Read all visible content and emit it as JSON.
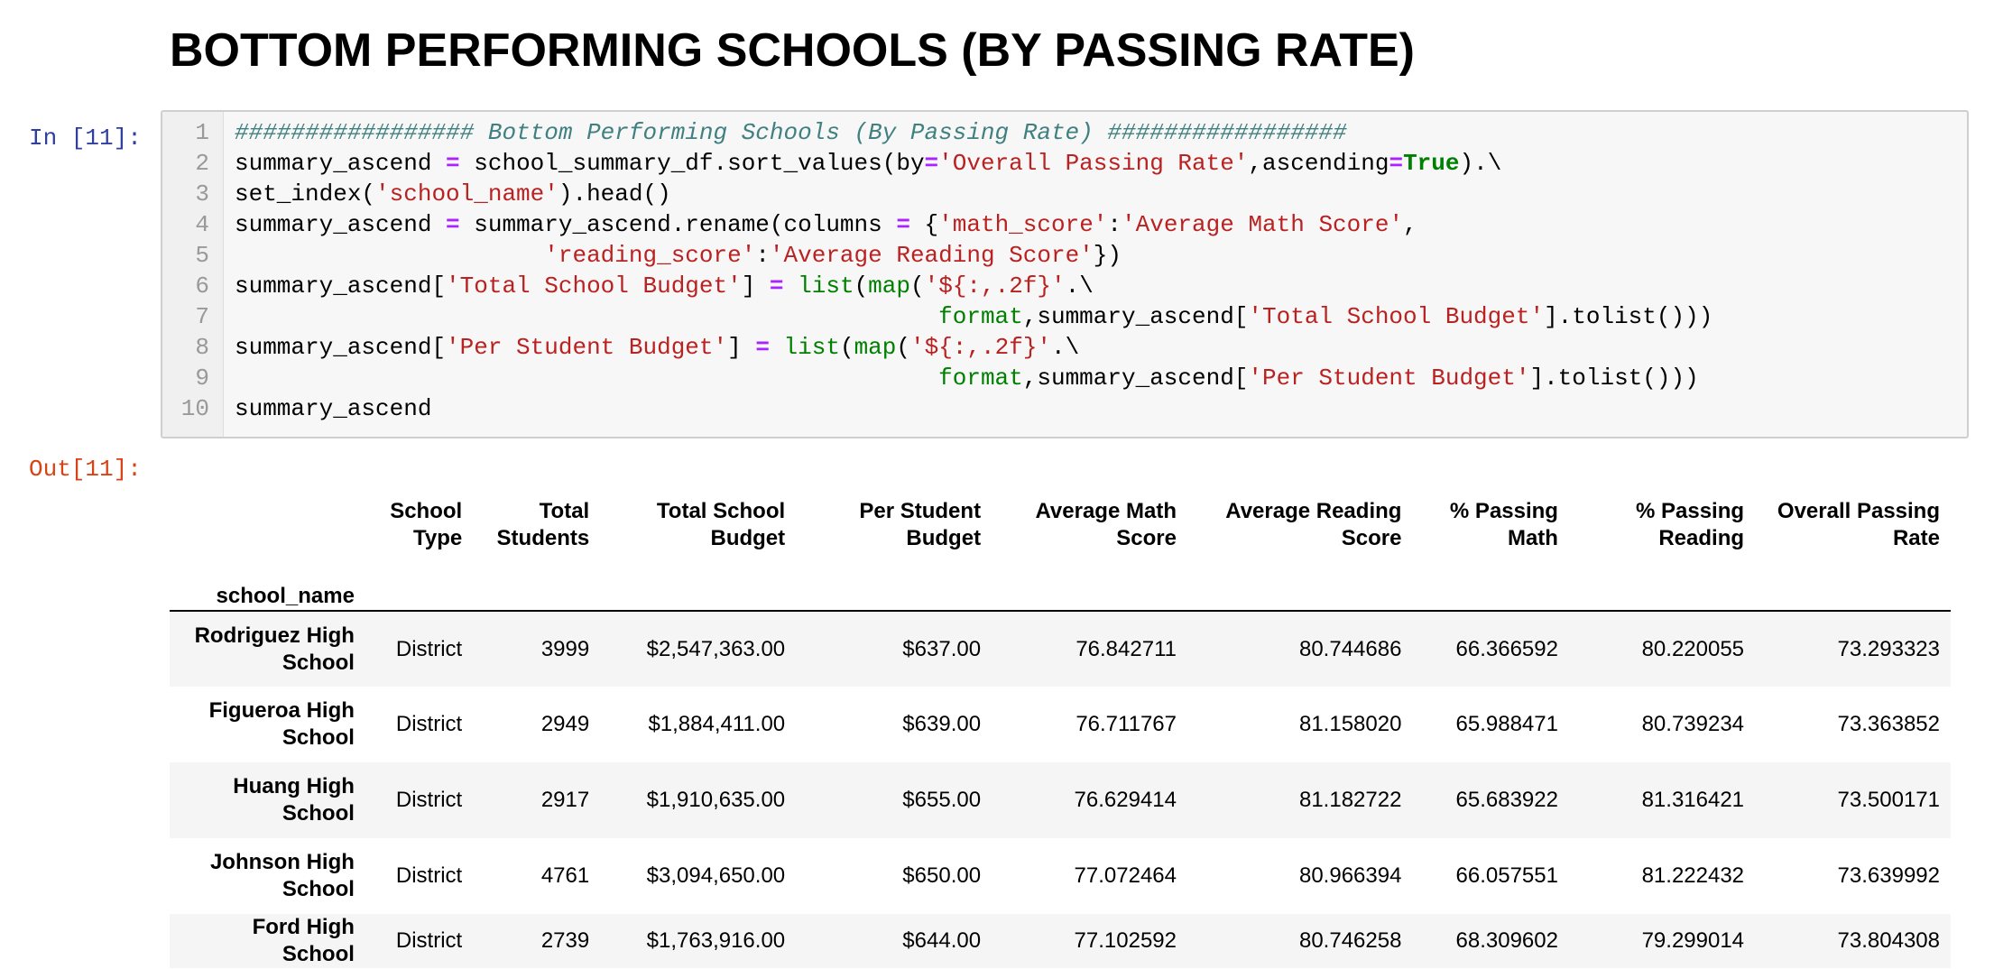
{
  "heading": "BOTTOM PERFORMING SCHOOLS (BY PASSING RATE)",
  "input_prompt": "In [11]:",
  "output_prompt": "Out[11]:",
  "code_lines": [
    {
      "n": "1",
      "tokens": [
        {
          "t": "cm",
          "v": "################# Bottom Performing Schools (By Passing Rate) #################"
        }
      ]
    },
    {
      "n": "2",
      "tokens": [
        {
          "t": "",
          "v": "summary_ascend "
        },
        {
          "t": "op",
          "v": "="
        },
        {
          "t": "",
          "v": " school_summary_df.sort_values(by"
        },
        {
          "t": "op",
          "v": "="
        },
        {
          "t": "st",
          "v": "'Overall Passing Rate'"
        },
        {
          "t": "",
          "v": ",ascending"
        },
        {
          "t": "op",
          "v": "="
        },
        {
          "t": "kw",
          "v": "True"
        },
        {
          "t": "",
          "v": ").\\"
        }
      ]
    },
    {
      "n": "3",
      "tokens": [
        {
          "t": "",
          "v": "set_index("
        },
        {
          "t": "st",
          "v": "'school_name'"
        },
        {
          "t": "",
          "v": ").head()"
        }
      ]
    },
    {
      "n": "4",
      "tokens": [
        {
          "t": "",
          "v": "summary_ascend "
        },
        {
          "t": "op",
          "v": "="
        },
        {
          "t": "",
          "v": " summary_ascend.rename(columns "
        },
        {
          "t": "op",
          "v": "="
        },
        {
          "t": "",
          "v": " {"
        },
        {
          "t": "st",
          "v": "'math_score'"
        },
        {
          "t": "",
          "v": ":"
        },
        {
          "t": "st",
          "v": "'Average Math Score'"
        },
        {
          "t": "",
          "v": ","
        }
      ]
    },
    {
      "n": "5",
      "tokens": [
        {
          "t": "",
          "v": "                      "
        },
        {
          "t": "st",
          "v": "'reading_score'"
        },
        {
          "t": "",
          "v": ":"
        },
        {
          "t": "st",
          "v": "'Average Reading Score'"
        },
        {
          "t": "",
          "v": "})"
        }
      ]
    },
    {
      "n": "6",
      "tokens": [
        {
          "t": "",
          "v": "summary_ascend["
        },
        {
          "t": "st",
          "v": "'Total School Budget'"
        },
        {
          "t": "",
          "v": "] "
        },
        {
          "t": "op",
          "v": "="
        },
        {
          "t": "",
          "v": " "
        },
        {
          "t": "bi",
          "v": "list"
        },
        {
          "t": "",
          "v": "("
        },
        {
          "t": "bi",
          "v": "map"
        },
        {
          "t": "",
          "v": "("
        },
        {
          "t": "st",
          "v": "'${:,.2f}'"
        },
        {
          "t": "",
          "v": ".\\"
        }
      ]
    },
    {
      "n": "7",
      "tokens": [
        {
          "t": "",
          "v": "                                                  "
        },
        {
          "t": "bi",
          "v": "format"
        },
        {
          "t": "",
          "v": ",summary_ascend["
        },
        {
          "t": "st",
          "v": "'Total School Budget'"
        },
        {
          "t": "",
          "v": "].tolist()))"
        }
      ]
    },
    {
      "n": "8",
      "tokens": [
        {
          "t": "",
          "v": "summary_ascend["
        },
        {
          "t": "st",
          "v": "'Per Student Budget'"
        },
        {
          "t": "",
          "v": "] "
        },
        {
          "t": "op",
          "v": "="
        },
        {
          "t": "",
          "v": " "
        },
        {
          "t": "bi",
          "v": "list"
        },
        {
          "t": "",
          "v": "("
        },
        {
          "t": "bi",
          "v": "map"
        },
        {
          "t": "",
          "v": "("
        },
        {
          "t": "st",
          "v": "'${:,.2f}'"
        },
        {
          "t": "",
          "v": ".\\"
        }
      ]
    },
    {
      "n": "9",
      "tokens": [
        {
          "t": "",
          "v": "                                                  "
        },
        {
          "t": "bi",
          "v": "format"
        },
        {
          "t": "",
          "v": ",summary_ascend["
        },
        {
          "t": "st",
          "v": "'Per Student Budget'"
        },
        {
          "t": "",
          "v": "].tolist()))"
        }
      ]
    },
    {
      "n": "10",
      "tokens": [
        {
          "t": "",
          "v": "summary_ascend"
        }
      ]
    }
  ],
  "table": {
    "index_name": "school_name",
    "columns": [
      "School Type",
      "Total Students",
      "Total School Budget",
      "Per Student Budget",
      "Average Math Score",
      "Average Reading Score",
      "% Passing Math",
      "% Passing Reading",
      "Overall Passing Rate"
    ],
    "rows": [
      {
        "name": "Rodriguez High School",
        "values": [
          "District",
          "3999",
          "$2,547,363.00",
          "$637.00",
          "76.842711",
          "80.744686",
          "66.366592",
          "80.220055",
          "73.293323"
        ]
      },
      {
        "name": "Figueroa High School",
        "values": [
          "District",
          "2949",
          "$1,884,411.00",
          "$639.00",
          "76.711767",
          "81.158020",
          "65.988471",
          "80.739234",
          "73.363852"
        ]
      },
      {
        "name": "Huang High School",
        "values": [
          "District",
          "2917",
          "$1,910,635.00",
          "$655.00",
          "76.629414",
          "81.182722",
          "65.683922",
          "81.316421",
          "73.500171"
        ]
      },
      {
        "name": "Johnson High School",
        "values": [
          "District",
          "4761",
          "$3,094,650.00",
          "$650.00",
          "77.072464",
          "80.966394",
          "66.057551",
          "81.222432",
          "73.639992"
        ]
      },
      {
        "name": "Ford High School",
        "values": [
          "District",
          "2739",
          "$1,763,916.00",
          "$644.00",
          "77.102592",
          "80.746258",
          "68.309602",
          "79.299014",
          "73.804308"
        ]
      }
    ]
  }
}
